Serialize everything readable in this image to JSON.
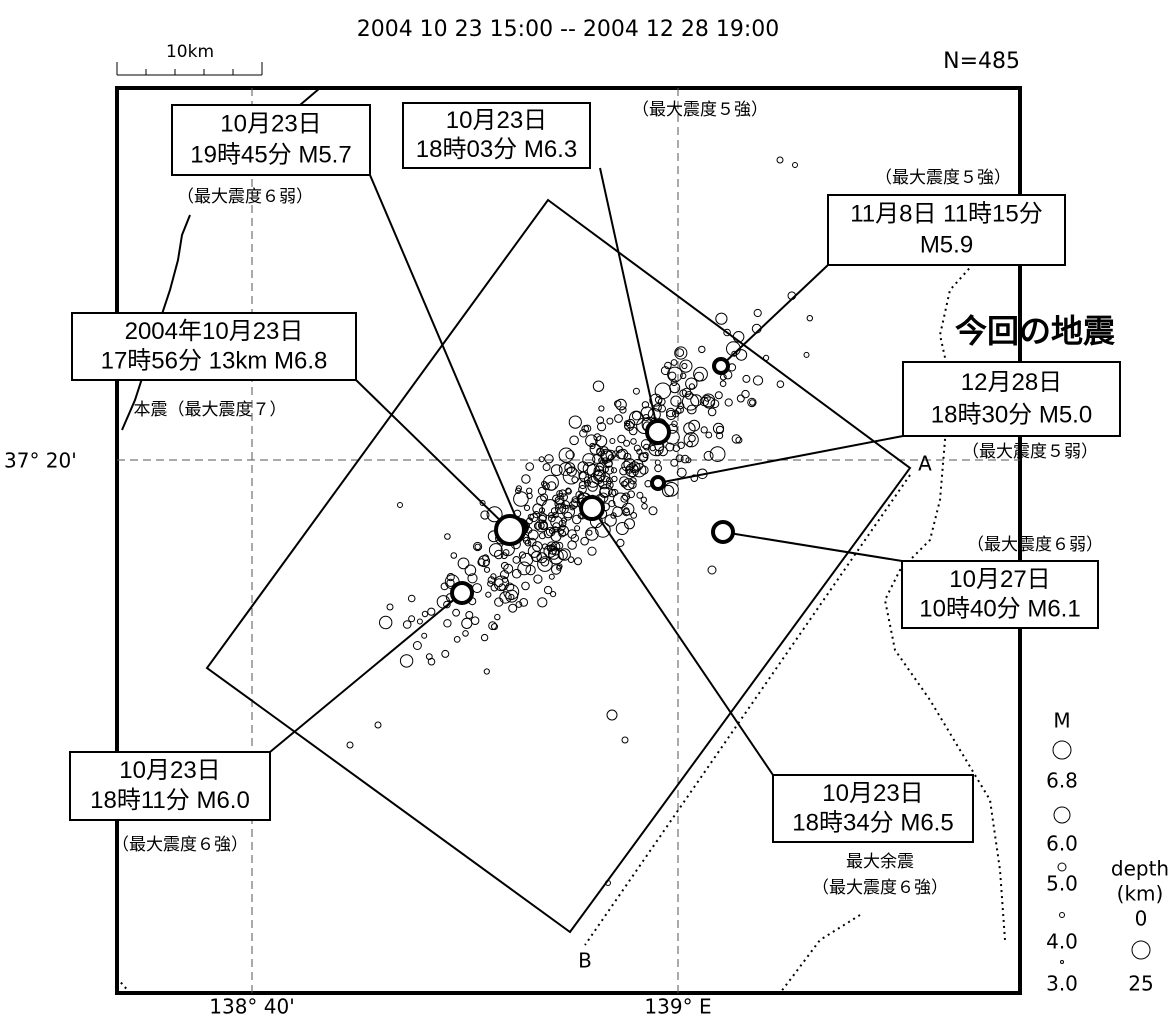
{
  "header": {
    "period": "2004  10  23  15:00  --  2004  12  28  19:00",
    "count": "N=485",
    "scale": "10km"
  },
  "axes": {
    "lat": "37° 20'",
    "lon": [
      "138° 40'",
      "139° E"
    ]
  },
  "section_labels": [
    "A",
    "B"
  ],
  "title": "今回の地震",
  "callouts": [
    {
      "lines": [
        "10月23日",
        "19時45分 M5.7"
      ],
      "intensity": "（最大震度６弱）"
    },
    {
      "lines": [
        "10月23日",
        "18時03分 M6.3"
      ],
      "intensity": "（最大震度５強）"
    },
    {
      "lines": [
        "11月8日 11時15分",
        "M5.9"
      ],
      "intensity": "（最大震度５強）"
    },
    {
      "lines": [
        "2004年10月23日",
        "17時56分 13km  M6.8"
      ],
      "intensity": "本震（最大震度７）"
    },
    {
      "lines": [
        "12月28日",
        "18時30分 M5.0"
      ],
      "intensity": "（最大震度５弱）"
    },
    {
      "lines": [
        "10月27日",
        "10時40分 M6.1"
      ],
      "intensity": "（最大震度６弱）"
    },
    {
      "lines": [
        "10月23日",
        "18時11分 M6.0"
      ],
      "intensity": "（最大震度６強）"
    },
    {
      "lines": [
        "10月23日",
        "18時34分 M6.5"
      ],
      "note": "最大余震",
      "intensity": "（最大震度６強）"
    }
  ],
  "legend": {
    "magnitude_title": "M",
    "magnitudes": [
      "6.8",
      "6.0",
      "5.0",
      "4.0",
      "3.0"
    ],
    "depth_title": "depth",
    "depth_unit": "(km)",
    "depths": [
      "0",
      "25"
    ]
  }
}
